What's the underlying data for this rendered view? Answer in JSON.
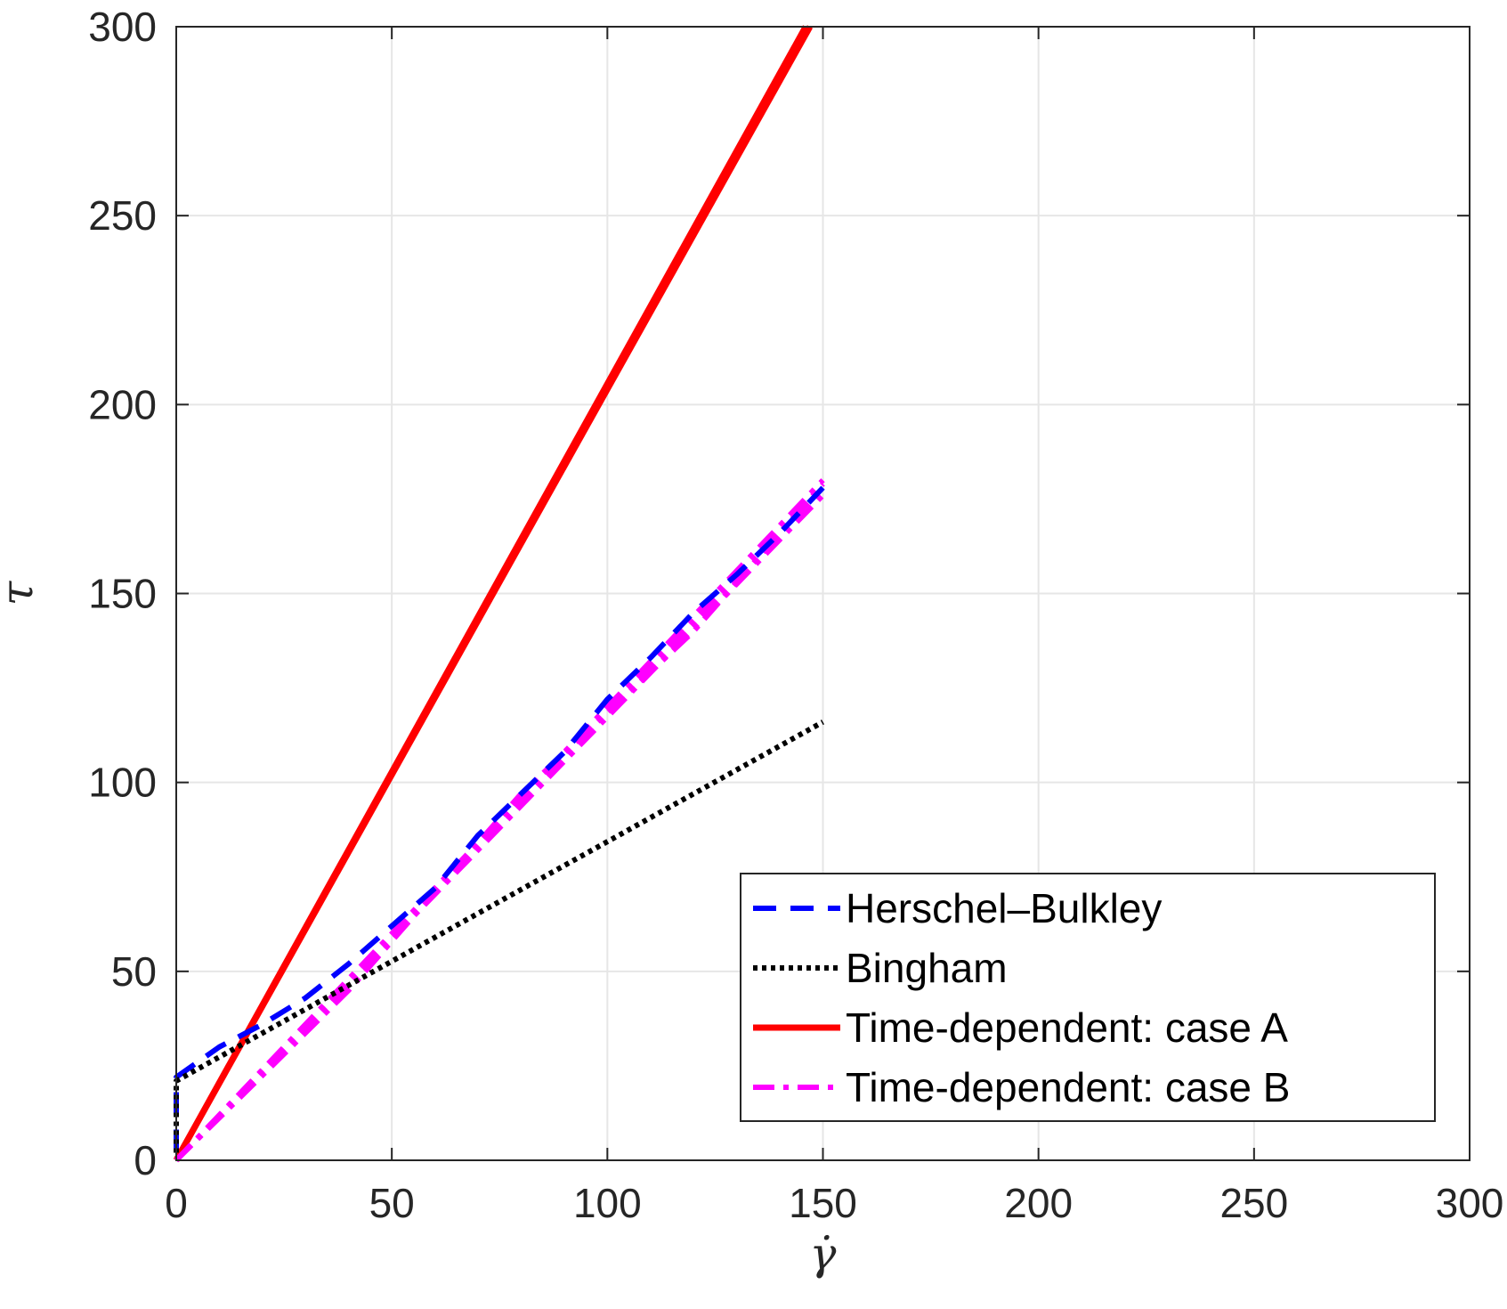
{
  "chart_data": {
    "type": "line",
    "xlabel": "γ̇",
    "ylabel": "τ",
    "xlim": [
      0,
      300
    ],
    "ylim": [
      0,
      300
    ],
    "xticks": [
      0,
      50,
      100,
      150,
      200,
      250,
      300
    ],
    "yticks": [
      0,
      50,
      100,
      150,
      200,
      250,
      300
    ],
    "xtick_labels": [
      "0",
      "50",
      "100",
      "150",
      "200",
      "250",
      "300"
    ],
    "ytick_labels": [
      "0",
      "50",
      "100",
      "150",
      "200",
      "250",
      "300"
    ],
    "grid": true,
    "legend_position": "bottom-right",
    "series": [
      {
        "name": "Herschel–Bulkley",
        "color": "#0000ff",
        "style": "dashed",
        "points": [
          [
            0,
            2
          ],
          [
            0,
            22
          ],
          [
            10,
            30
          ],
          [
            20,
            36
          ],
          [
            30,
            43
          ],
          [
            40,
            52
          ],
          [
            50,
            62
          ],
          [
            60,
            72
          ],
          [
            70,
            86
          ],
          [
            80,
            97
          ],
          [
            90,
            108
          ],
          [
            100,
            122
          ],
          [
            110,
            133
          ],
          [
            120,
            145
          ],
          [
            130,
            155
          ],
          [
            140,
            166
          ],
          [
            150,
            178
          ]
        ]
      },
      {
        "name": "Bingham",
        "color": "#000000",
        "style": "dotted",
        "points": [
          [
            0,
            2
          ],
          [
            0,
            21
          ],
          [
            150,
            116
          ]
        ]
      },
      {
        "name": "Time-dependent: case A",
        "color": "#ff0000",
        "style": "solid",
        "points": [
          [
            0,
            0
          ],
          [
            147,
            300
          ]
        ],
        "extra_branches": [
          [
            [
              0,
              0
            ],
            [
              146,
              300
            ]
          ]
        ]
      },
      {
        "name": "Time-dependent: case B",
        "color": "#ff00ff",
        "style": "dashdot",
        "points": [
          [
            0,
            0
          ],
          [
            150,
            180
          ]
        ],
        "extra_branches": [
          [
            [
              0,
              0
            ],
            [
              150,
              178
            ]
          ],
          [
            [
              0,
              0
            ],
            [
              150,
              176
            ]
          ],
          [
            [
              0,
              0
            ],
            [
              40,
              45
            ],
            [
              80,
              97
            ],
            [
              120,
              140
            ],
            [
              150,
              179
            ]
          ]
        ]
      }
    ]
  }
}
